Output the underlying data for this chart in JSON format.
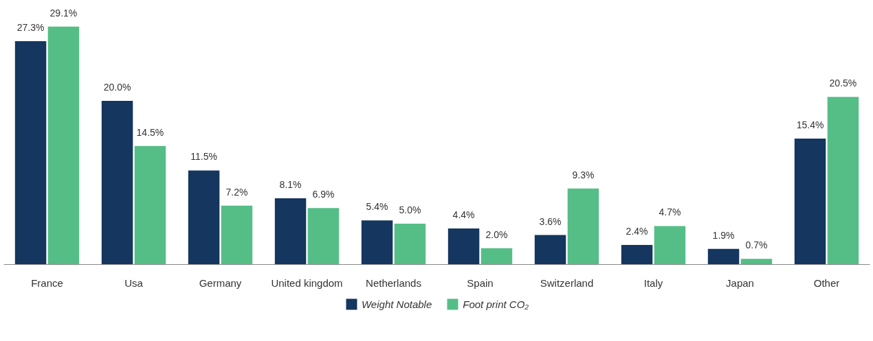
{
  "chart_data": {
    "type": "bar",
    "categories": [
      "France",
      "Usa",
      "Germany",
      "United kingdom",
      "Netherlands",
      "Spain",
      "Switzerland",
      "Italy",
      "Japan",
      "Other"
    ],
    "series": [
      {
        "name": "Weight Notable",
        "color": "#14365f",
        "values": [
          27.3,
          20.0,
          11.5,
          8.1,
          5.4,
          4.4,
          3.6,
          2.4,
          1.9,
          15.4
        ],
        "value_labels": [
          "27.3%",
          "20.0%",
          "11.5%",
          "8.1%",
          "5.4%",
          "4.4%",
          "3.6%",
          "2.4%",
          "1.9%",
          "15.4%"
        ]
      },
      {
        "name": "Foot print CO₂",
        "color": "#55be87",
        "values": [
          29.1,
          14.5,
          7.2,
          6.9,
          5.0,
          2.0,
          9.3,
          4.7,
          0.7,
          20.5
        ],
        "value_labels": [
          "29.1%",
          "14.5%",
          "7.2%",
          "6.9%",
          "5.0%",
          "2.0%",
          "9.3%",
          "4.7%",
          "0.7%",
          "20.5%"
        ]
      }
    ],
    "tick_labels": "x",
    "grid": false,
    "legend": "bottom"
  }
}
